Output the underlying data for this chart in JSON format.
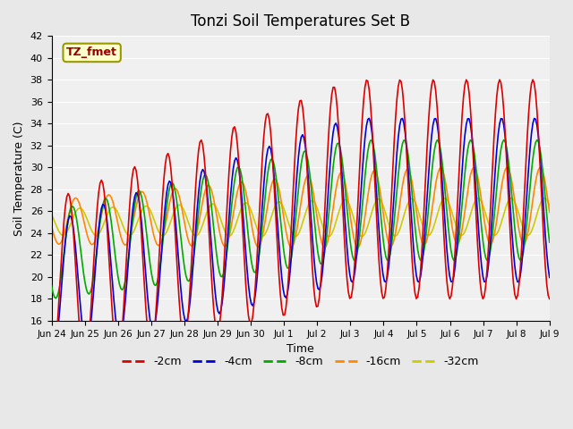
{
  "title": "Tonzi Soil Temperatures Set B",
  "xlabel": "Time",
  "ylabel": "Soil Temperature (C)",
  "ylim": [
    16,
    42
  ],
  "yticks": [
    16,
    18,
    20,
    22,
    24,
    26,
    28,
    30,
    32,
    34,
    36,
    38,
    40,
    42
  ],
  "annotation_text": "TZ_fmet",
  "annotation_color": "#990000",
  "annotation_bg": "#ffffcc",
  "annotation_border": "#999900",
  "series_colors": {
    "-2cm": "#dd0000",
    "-4cm": "#0000dd",
    "-8cm": "#00aa00",
    "-16cm": "#ff8800",
    "-32cm": "#cccc00"
  },
  "legend_labels": [
    "-2cm",
    "-4cm",
    "-8cm",
    "-16cm",
    "-32cm"
  ],
  "background_color": "#e8e8e8",
  "plot_bg": "#f0f0f0",
  "x_tick_labels": [
    "Jun 24",
    "Jun 25",
    "Jun 26",
    "Jun 27",
    "Jun 28",
    "Jun 29",
    "Jun 30",
    "Jul 1",
    "Jul 2",
    "Jul 3",
    "Jul 4",
    "Jul 5",
    "Jul 6",
    "Jul 7",
    "Jul 8",
    "Jul 9"
  ],
  "x_tick_positions": [
    0,
    1,
    2,
    3,
    4,
    5,
    6,
    7,
    8,
    9,
    10,
    11,
    12,
    13,
    14,
    15
  ],
  "xlim": [
    0,
    15
  ],
  "n_points": 360
}
